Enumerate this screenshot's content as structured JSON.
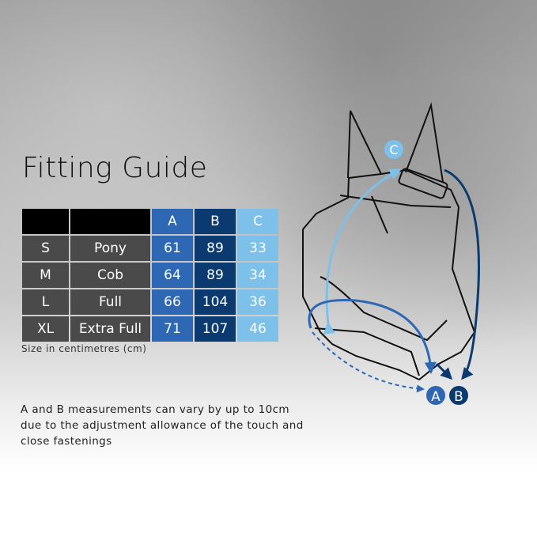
{
  "title": "Fitting Guide",
  "table": {
    "headers": [
      "",
      "",
      "A",
      "B",
      "C"
    ],
    "rows": [
      {
        "size": "S",
        "name": "Pony",
        "a": "61",
        "b": "89",
        "c": "33"
      },
      {
        "size": "M",
        "name": "Cob",
        "a": "64",
        "b": "89",
        "c": "34"
      },
      {
        "size": "L",
        "name": "Full",
        "a": "66",
        "b": "104",
        "c": "36"
      },
      {
        "size": "XL",
        "name": "Extra Full",
        "a": "71",
        "b": "107",
        "c": "46"
      }
    ]
  },
  "note": "Size in centimetres (cm)",
  "description": "A and B measurements can vary by up to 10cm due to the adjustment allowance of the touch and close fastenings",
  "diagram": {
    "label_a": "A",
    "label_b": "B",
    "label_c": "C"
  },
  "colors": {
    "a": "#2e67b3",
    "b": "#0b3a70",
    "c": "#7dc0ea"
  }
}
